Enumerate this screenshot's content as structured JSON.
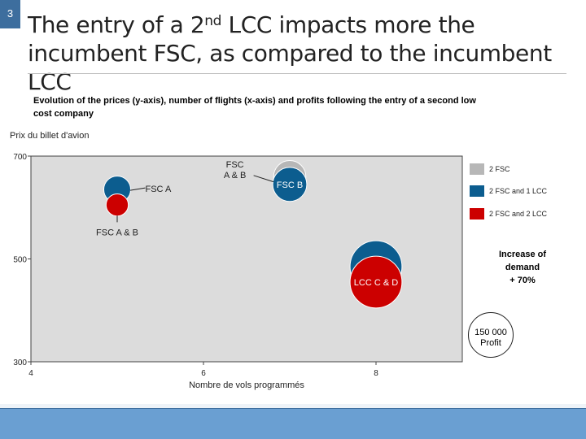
{
  "slide": {
    "number": "3",
    "title_part1": "The entry of a 2",
    "title_sup": "nd",
    "title_part2": " LCC impacts more the incumbent FSC, as compared to the incumbent LCC",
    "subtitle": "Evolution of the prices (y-axis), number of flights (x-axis) and profits following the entry of a second low cost company",
    "colors": {
      "slide_num_bg": "#3d6e9e",
      "footer": "#6a9fd2"
    }
  },
  "chart_data": {
    "type": "scatter",
    "subtype": "bubble",
    "xlabel": "Nombre de vols programmés",
    "ylabel": "Prix du billet d'avion",
    "xlim": [
      4,
      9
    ],
    "ylim": [
      300,
      700
    ],
    "xticks": [
      "4",
      "6",
      "8"
    ],
    "yticks": [
      "300",
      "500",
      "700"
    ],
    "grid": false,
    "legend_position": "right",
    "plot_background": "#dcdcdc",
    "series": [
      {
        "name": "2 FSC",
        "color": "#b7b7b7",
        "points": [
          {
            "x": 7.0,
            "y": 660,
            "profit_rel": 0.9,
            "label": ""
          }
        ]
      },
      {
        "name": "2 FSC and 1 LCC",
        "color": "#0c5d8f",
        "points": [
          {
            "x": 5.0,
            "y": 635,
            "profit_rel": 0.75,
            "label": ""
          },
          {
            "x": 7.0,
            "y": 645,
            "profit_rel": 0.95,
            "label": "FSC B"
          },
          {
            "x": 8.0,
            "y": 485,
            "profit_rel": 1.45,
            "label": "LCC C"
          }
        ]
      },
      {
        "name": "2 FSC and 2 LCC",
        "color": "#cc0000",
        "points": [
          {
            "x": 5.0,
            "y": 605,
            "profit_rel": 0.62,
            "label": ""
          },
          {
            "x": 8.0,
            "y": 455,
            "profit_rel": 1.45,
            "label": "LCC C & D"
          }
        ]
      }
    ],
    "annotations": [
      {
        "text": "FSC A",
        "x": 5.25,
        "y": 635
      },
      {
        "text": "FSC A & B",
        "x": 5.0,
        "y": 565
      },
      {
        "text_lines": [
          "FSC",
          "A & B"
        ],
        "x": 6.27,
        "y": 675
      }
    ],
    "note": [
      "Increase of",
      "demand",
      "+ 70%"
    ],
    "profit_scale": {
      "lines": [
        "150 000",
        "Profit"
      ],
      "profit_rel": 1.25
    }
  }
}
